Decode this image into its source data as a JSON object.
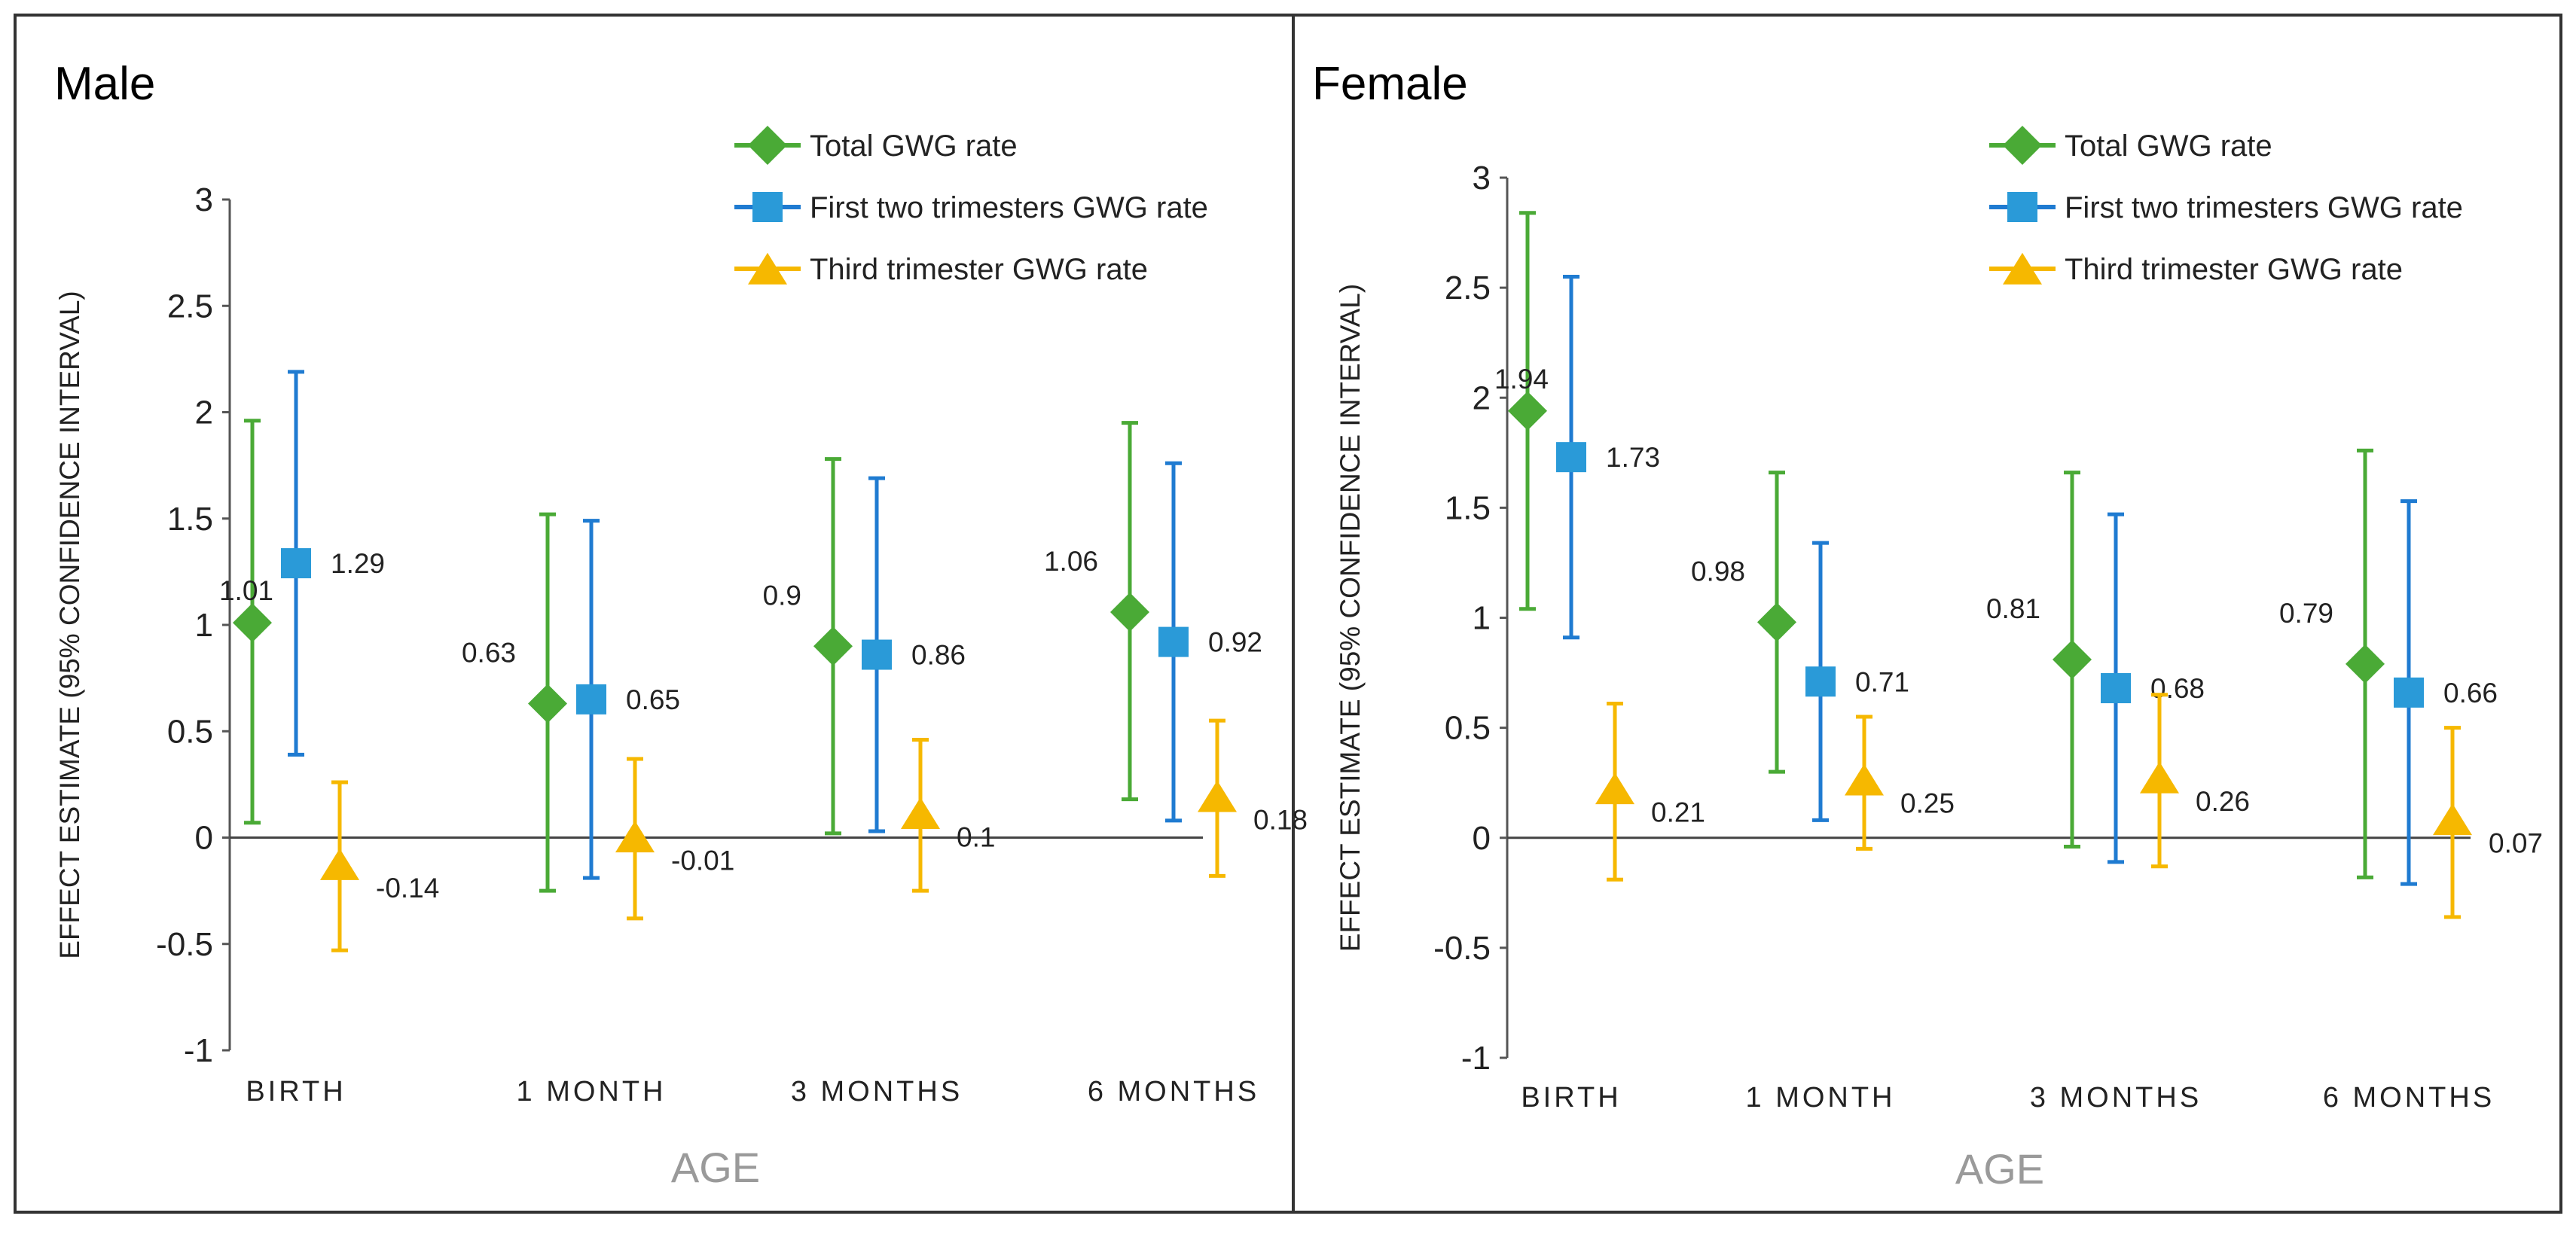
{
  "colors": {
    "total": "#4aaa36",
    "first": "#1f7bd1",
    "first_marker": "#2a9ad8",
    "third": "#f6b800",
    "axis": "#555555"
  },
  "chart_data": [
    {
      "type": "scatter",
      "panel": "Male",
      "title": "Male",
      "xlabel": "AGE",
      "ylabel": "EFFECT ESTIMATE (95% CONFIDENCE INTERVAL)",
      "ylim": [
        -1,
        3
      ],
      "yticks": [
        "3",
        "2.5",
        "2",
        "1.5",
        "1",
        "0.5",
        "0",
        "-0.5",
        "-1"
      ],
      "categories": [
        "BIRTH",
        "1 MONTH",
        "3 MONTHS",
        "6 MONTHS"
      ],
      "legend": [
        "Total GWG rate",
        "First two trimesters GWG rate",
        "Third trimester GWG rate"
      ],
      "series": [
        {
          "name": "Total GWG rate",
          "marker": "diamond",
          "values": [
            1.01,
            0.63,
            0.9,
            1.06
          ],
          "labels": [
            "1.01",
            "0.63",
            "0.9",
            "1.06"
          ],
          "lower": [
            0.07,
            -0.25,
            0.02,
            0.18
          ],
          "upper": [
            1.96,
            1.52,
            1.78,
            1.95
          ]
        },
        {
          "name": "First two trimesters GWG rate",
          "marker": "square",
          "values": [
            1.29,
            0.65,
            0.86,
            0.92
          ],
          "labels": [
            "1.29",
            "0.65",
            "0.86",
            "0.92"
          ],
          "lower": [
            0.39,
            -0.19,
            0.03,
            0.08
          ],
          "upper": [
            2.19,
            1.49,
            1.69,
            1.76
          ]
        },
        {
          "name": "Third trimester GWG rate",
          "marker": "triangle",
          "values": [
            -0.14,
            -0.01,
            0.1,
            0.18
          ],
          "labels": [
            "-0.14",
            "-0.01",
            "0.1",
            "0.18"
          ],
          "lower": [
            -0.53,
            -0.38,
            -0.25,
            -0.18
          ],
          "upper": [
            0.26,
            0.37,
            0.46,
            0.55
          ]
        }
      ]
    },
    {
      "type": "scatter",
      "panel": "Female",
      "title": "Female",
      "xlabel": "AGE",
      "ylabel": "EFFECT ESTIMATE (95% CONFIDENCE INTERVAL)",
      "ylim": [
        -1,
        3
      ],
      "yticks": [
        "3",
        "2.5",
        "2",
        "1.5",
        "1",
        "0.5",
        "0",
        "-0.5",
        "-1"
      ],
      "categories": [
        "BIRTH",
        "1 MONTH",
        "3 MONTHS",
        "6 MONTHS"
      ],
      "legend": [
        "Total GWG rate",
        "First two trimesters GWG rate",
        "Third trimester GWG rate"
      ],
      "series": [
        {
          "name": "Total GWG rate",
          "marker": "diamond",
          "values": [
            1.94,
            0.98,
            0.81,
            0.79
          ],
          "labels": [
            "1.94",
            "0.98",
            "0.81",
            "0.79"
          ],
          "lower": [
            1.04,
            0.3,
            -0.04,
            -0.18
          ],
          "upper": [
            2.84,
            1.66,
            1.66,
            1.76
          ]
        },
        {
          "name": "First two trimesters GWG rate",
          "marker": "square",
          "values": [
            1.73,
            0.71,
            0.68,
            0.66
          ],
          "labels": [
            "1.73",
            "0.71",
            "0.68",
            "0.66"
          ],
          "lower": [
            0.91,
            0.08,
            -0.11,
            -0.21
          ],
          "upper": [
            2.55,
            1.34,
            1.47,
            1.53
          ]
        },
        {
          "name": "Third trimester GWG rate",
          "marker": "triangle",
          "values": [
            0.21,
            0.25,
            0.26,
            0.07
          ],
          "labels": [
            "0.21",
            "0.25",
            "0.26",
            "0.07"
          ],
          "lower": [
            -0.19,
            -0.05,
            -0.13,
            -0.36
          ],
          "upper": [
            0.61,
            0.55,
            0.65,
            0.5
          ]
        }
      ]
    }
  ]
}
